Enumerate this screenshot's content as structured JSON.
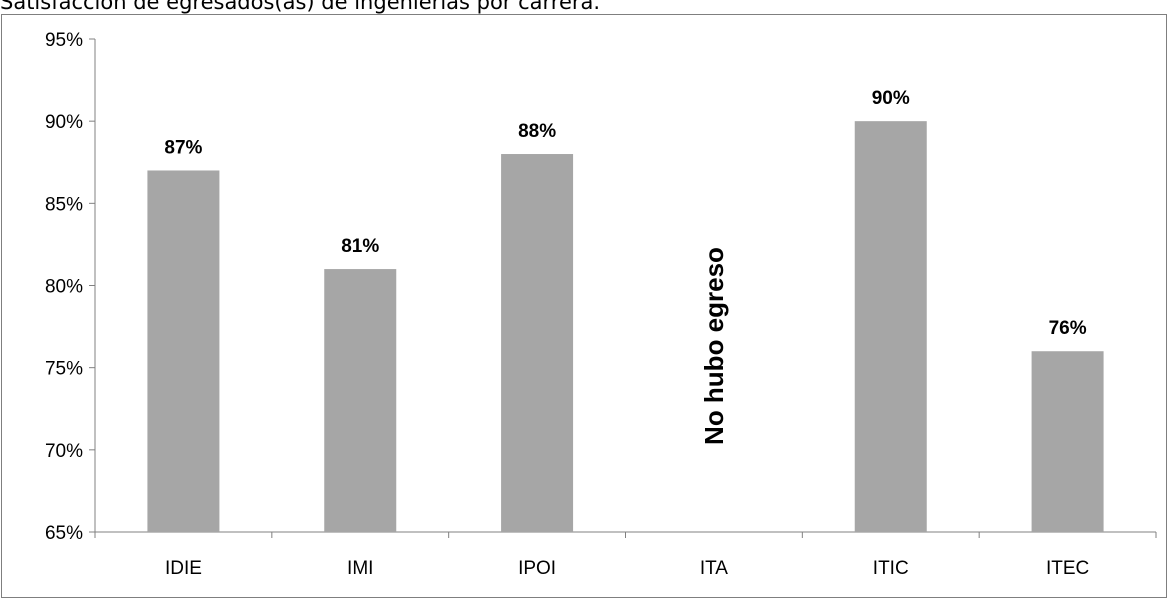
{
  "caption": "Satisfacción de egresados(as) de ingenierías por carrera.",
  "chart_data": {
    "type": "bar",
    "categories": [
      "IDIE",
      "IMI",
      "IPOI",
      "ITA",
      "ITIC",
      "ITEC"
    ],
    "values": [
      87,
      81,
      88,
      null,
      90,
      76
    ],
    "data_labels": [
      "87%",
      "81%",
      "88%",
      "",
      "90%",
      "76%"
    ],
    "annotation": {
      "category": "ITA",
      "text": "No hubo egreso"
    },
    "yticks": [
      65,
      70,
      75,
      80,
      85,
      90,
      95
    ],
    "ytick_labels": [
      "65%",
      "70%",
      "75%",
      "80%",
      "85%",
      "90%",
      "95%"
    ],
    "ylim": [
      65,
      95
    ],
    "title": "",
    "xlabel": "",
    "ylabel": "",
    "grid": false,
    "bar_color": "#a6a6a6"
  }
}
